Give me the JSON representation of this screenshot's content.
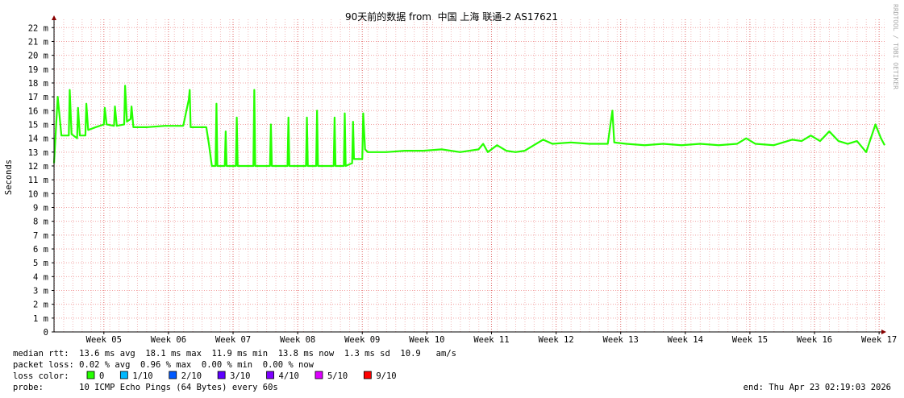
{
  "chart_data": {
    "type": "line",
    "title": "90天前的数据 from  中国 上海 联通-2 AS17621",
    "y_label": "Seconds",
    "side_text": "RRDTOOL / TOBI OETIKER",
    "xlim": [
      0,
      90
    ],
    "xticks": [
      {
        "value": 5.4,
        "label": "Week 05"
      },
      {
        "value": 12.4,
        "label": "Week 06"
      },
      {
        "value": 19.4,
        "label": "Week 07"
      },
      {
        "value": 26.4,
        "label": "Week 08"
      },
      {
        "value": 33.4,
        "label": "Week 09"
      },
      {
        "value": 40.4,
        "label": "Week 10"
      },
      {
        "value": 47.4,
        "label": "Week 11"
      },
      {
        "value": 54.4,
        "label": "Week 12"
      },
      {
        "value": 61.4,
        "label": "Week 13"
      },
      {
        "value": 68.4,
        "label": "Week 14"
      },
      {
        "value": 75.4,
        "label": "Week 15"
      },
      {
        "value": 82.4,
        "label": "Week 16"
      },
      {
        "value": 89.4,
        "label": "Week 17"
      }
    ],
    "ylim": [
      0,
      0.0226
    ],
    "yticks": [
      0,
      {
        "value": 0.001,
        "label": "1 m"
      },
      {
        "value": 0.002,
        "label": "2 m"
      },
      {
        "value": 0.003,
        "label": "3 m"
      },
      {
        "value": 0.004,
        "label": "4 m"
      },
      {
        "value": 0.005,
        "label": "5 m"
      },
      {
        "value": 0.006,
        "label": "6 m"
      },
      {
        "value": 0.007,
        "label": "7 m"
      },
      {
        "value": 0.008,
        "label": "8 m"
      },
      {
        "value": 0.009,
        "label": "9 m"
      },
      {
        "value": 0.01,
        "label": "10 m"
      },
      {
        "value": 0.011,
        "label": "11 m"
      },
      {
        "value": 0.012,
        "label": "12 m"
      },
      {
        "value": 0.013,
        "label": "13 m"
      },
      {
        "value": 0.014,
        "label": "14 m"
      },
      {
        "value": 0.015,
        "label": "15 m"
      },
      {
        "value": 0.016,
        "label": "16 m"
      },
      {
        "value": 0.017,
        "label": "17 m"
      },
      {
        "value": 0.018,
        "label": "18 m"
      },
      {
        "value": 0.019,
        "label": "19 m"
      },
      {
        "value": 0.02,
        "label": "20 m"
      },
      {
        "value": 0.021,
        "label": "21 m"
      },
      {
        "value": 0.022,
        "label": "22 m"
      }
    ],
    "grid": true,
    "x": [
      0,
      0.4,
      0.8,
      1.6,
      1.7,
      1.9,
      2.5,
      2.6,
      2.8,
      3.4,
      3.5,
      3.7,
      4.5,
      5.4,
      5.5,
      5.7,
      6.5,
      6.6,
      6.8,
      7.6,
      7.7,
      7.9,
      8.3,
      8.4,
      8.6,
      10,
      12,
      14,
      14.6,
      14.7,
      14.8,
      16.5,
      16.8,
      17.1,
      17.5,
      17.6,
      17.7,
      18.5,
      18.6,
      18.7,
      19.7,
      19.8,
      19.9,
      21.6,
      21.7,
      21.8,
      23.4,
      23.5,
      23.6,
      25.3,
      25.4,
      25.5,
      27.3,
      27.4,
      27.5,
      28.4,
      28.5,
      28.6,
      30.3,
      30.4,
      30.5,
      31.4,
      31.5,
      31.6,
      32.3,
      32.4,
      32.5,
      33.4,
      33.5,
      33.7,
      34,
      36,
      38,
      40,
      42,
      44,
      46,
      46.5,
      47,
      48,
      49,
      50,
      51,
      52,
      53,
      54,
      56,
      58,
      60,
      60.5,
      60.7,
      62,
      64,
      66,
      68,
      70,
      72,
      74,
      75,
      76,
      78,
      80,
      81,
      82,
      83,
      84,
      85,
      86,
      87,
      88,
      89,
      89.6,
      90
    ],
    "series": [
      {
        "name": "median rtt",
        "color": "#26ff00",
        "values": [
          0.0122,
          0.017,
          0.0142,
          0.0142,
          0.0175,
          0.0143,
          0.014,
          0.0162,
          0.0142,
          0.0142,
          0.0165,
          0.0146,
          0.0148,
          0.015,
          0.0162,
          0.015,
          0.0149,
          0.0163,
          0.0149,
          0.015,
          0.0178,
          0.0152,
          0.0154,
          0.0163,
          0.0148,
          0.0148,
          0.0149,
          0.0149,
          0.0168,
          0.0175,
          0.0148,
          0.0148,
          0.0135,
          0.012,
          0.012,
          0.0165,
          0.012,
          0.012,
          0.0145,
          0.012,
          0.012,
          0.0155,
          0.012,
          0.012,
          0.0175,
          0.012,
          0.012,
          0.015,
          0.012,
          0.012,
          0.0155,
          0.012,
          0.012,
          0.0155,
          0.012,
          0.012,
          0.016,
          0.012,
          0.012,
          0.0155,
          0.012,
          0.012,
          0.0158,
          0.012,
          0.0122,
          0.0152,
          0.0125,
          0.0125,
          0.0158,
          0.0132,
          0.013,
          0.013,
          0.0131,
          0.0131,
          0.0132,
          0.013,
          0.0132,
          0.0136,
          0.013,
          0.0135,
          0.0131,
          0.013,
          0.0131,
          0.0135,
          0.0139,
          0.0136,
          0.0137,
          0.0136,
          0.0136,
          0.016,
          0.0137,
          0.0136,
          0.0135,
          0.0136,
          0.0135,
          0.0136,
          0.0135,
          0.0136,
          0.014,
          0.0136,
          0.0135,
          0.0139,
          0.0138,
          0.0142,
          0.0138,
          0.0145,
          0.0138,
          0.0136,
          0.0138,
          0.013,
          0.015,
          0.014,
          0.0135
        ]
      }
    ],
    "stats": [
      "median rtt:  13.6 ms avg  18.1 ms max  11.9 ms min  13.8 ms now  1.3 ms sd  10.9   am/s",
      "packet loss: 0.02 % avg  0.96 % max  0.00 % min  0.00 % now"
    ],
    "loss_label": "loss color:",
    "loss_colors": [
      {
        "label": "0",
        "color": "#26ff00"
      },
      {
        "label": "1/10",
        "color": "#00b8ff"
      },
      {
        "label": "2/10",
        "color": "#0059ff"
      },
      {
        "label": "3/10",
        "color": "#5e00ff"
      },
      {
        "label": "4/10",
        "color": "#7e00ff"
      },
      {
        "label": "5/10",
        "color": "#dd00ff"
      },
      {
        "label": "9/10",
        "color": "#ff0000"
      }
    ],
    "probe": "probe:       10 ICMP Echo Pings (64 Bytes) every 60s",
    "end": "end: Thu Apr 23 02:19:03 2026"
  }
}
